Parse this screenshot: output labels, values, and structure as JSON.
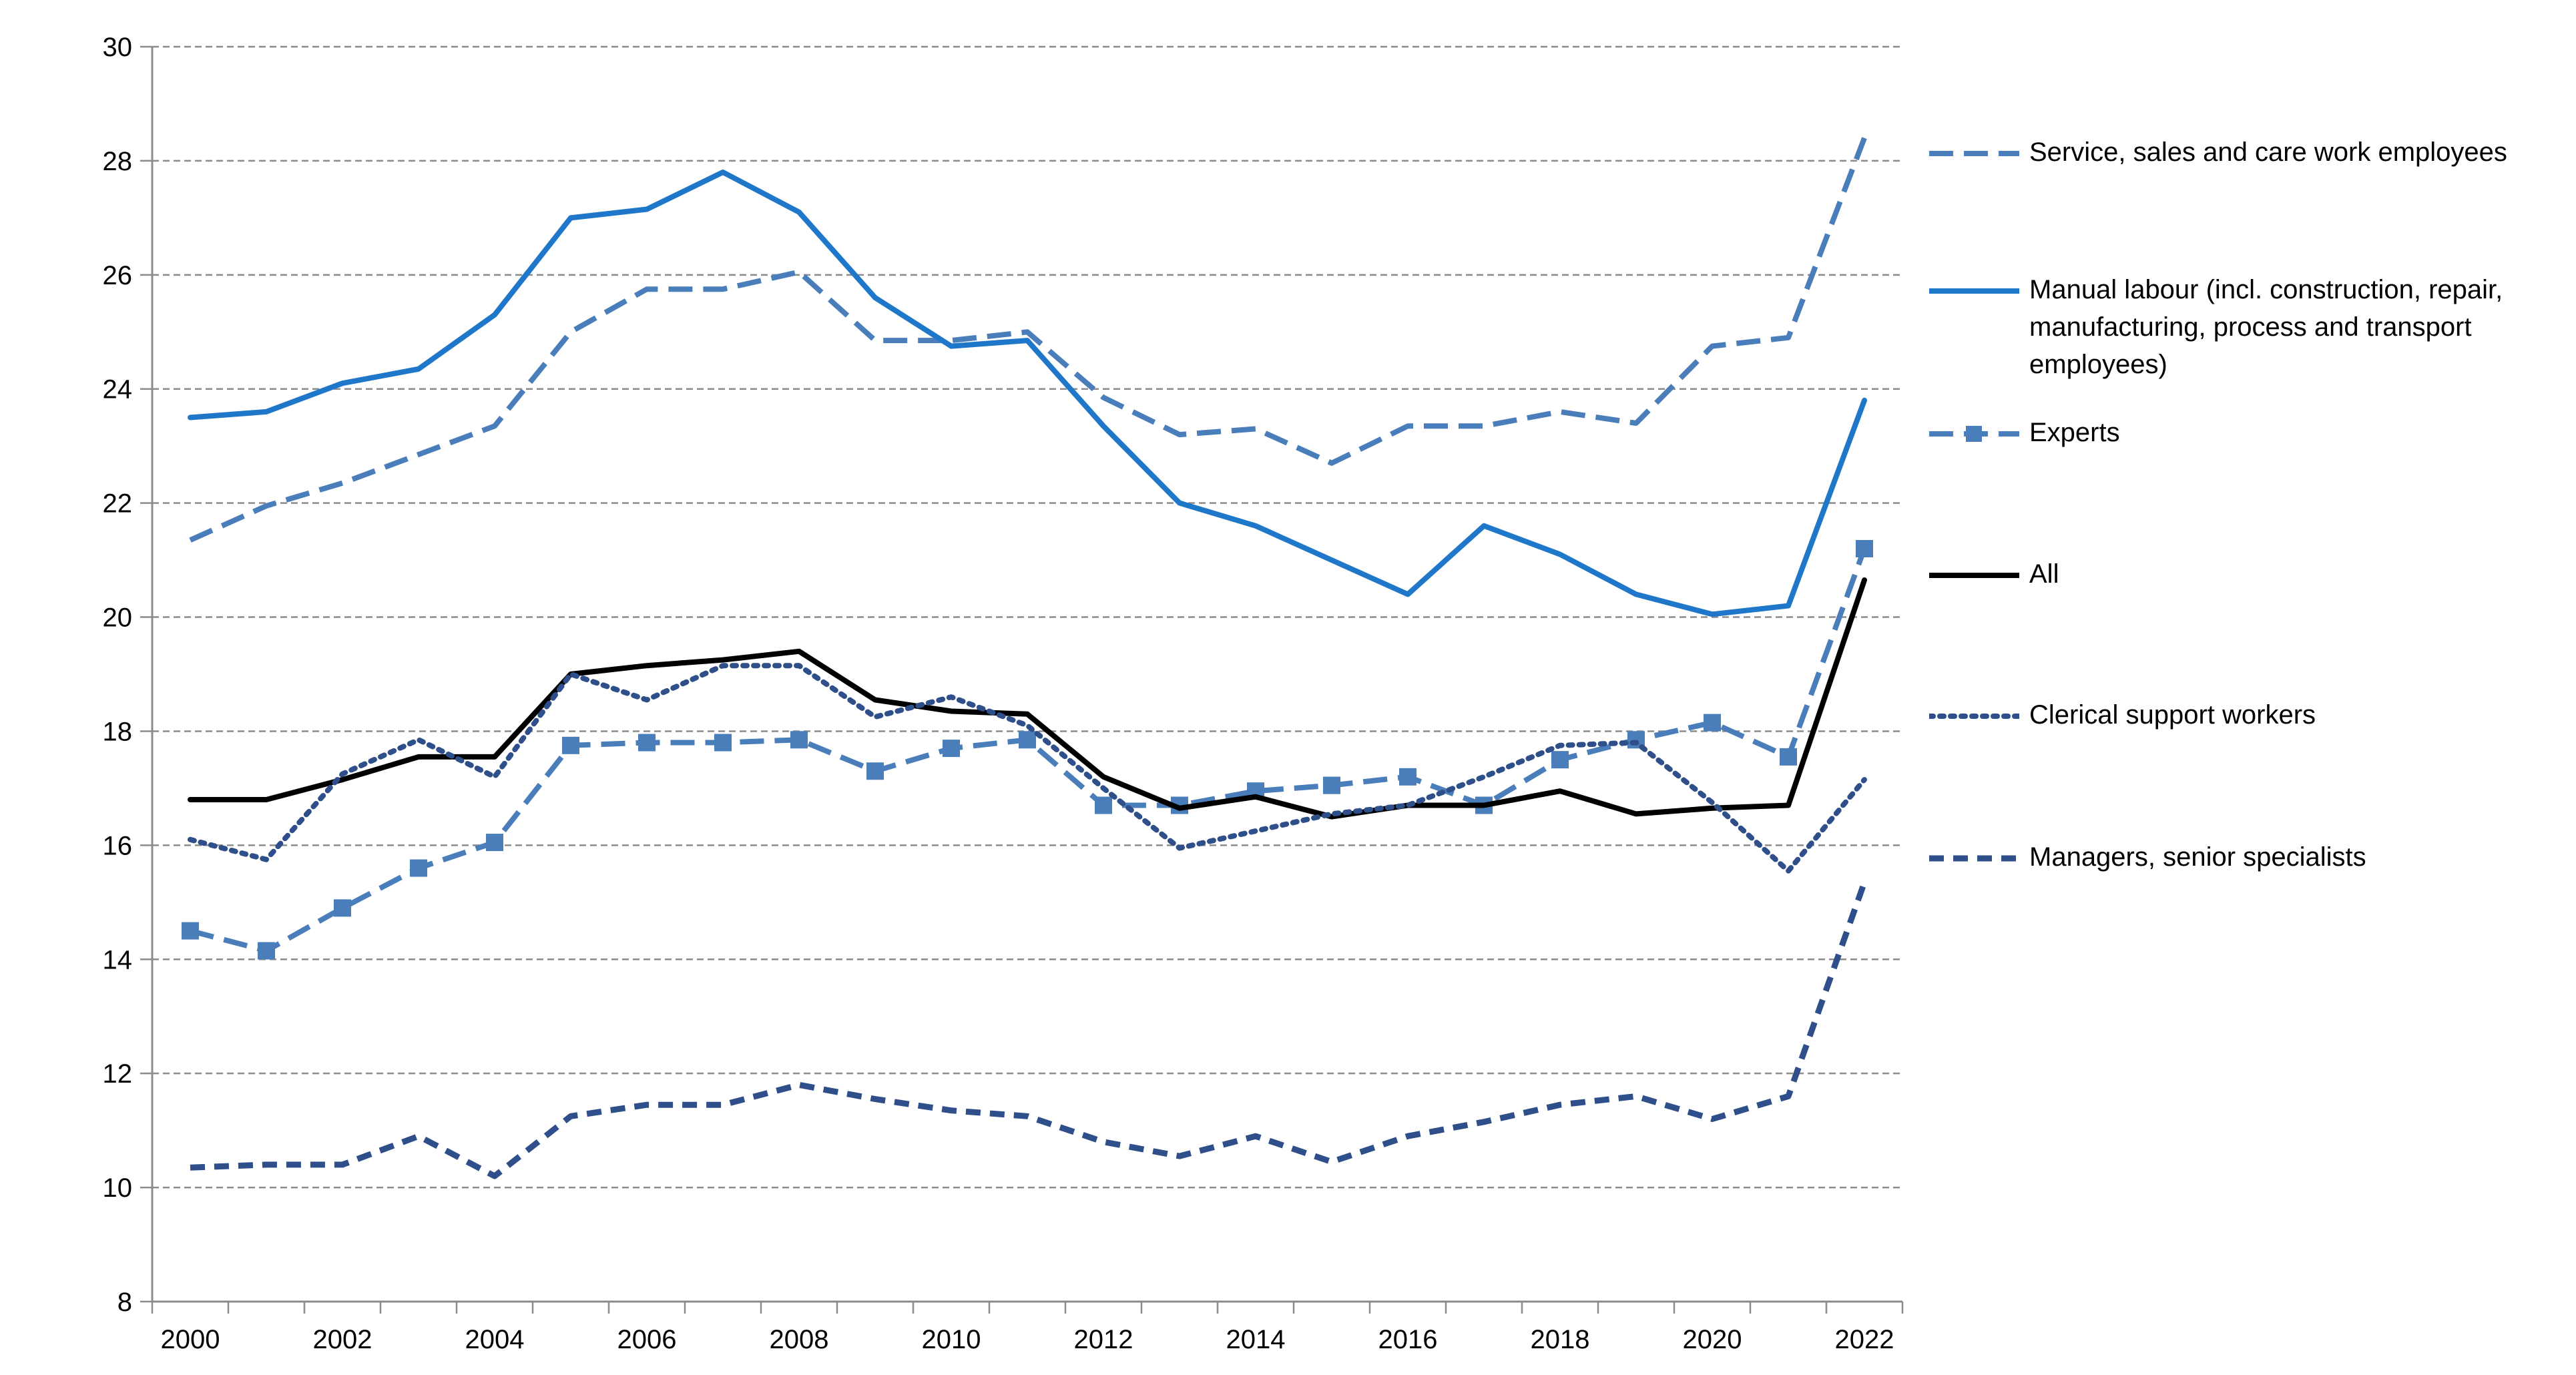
{
  "chart_data": {
    "type": "line",
    "title": "",
    "xlabel": "",
    "ylabel": "",
    "ylim": [
      8,
      30
    ],
    "y_ticks": [
      "8",
      "10",
      "12",
      "14",
      "16",
      "18",
      "20",
      "22",
      "24",
      "26",
      "28",
      "30"
    ],
    "x_tick_labels": [
      "2000",
      "2002",
      "2004",
      "2006",
      "2008",
      "2010",
      "2012",
      "2014",
      "2016",
      "2018",
      "2020",
      "2022"
    ],
    "x": [
      2000,
      2001,
      2002,
      2003,
      2004,
      2005,
      2006,
      2007,
      2008,
      2009,
      2010,
      2011,
      2012,
      2013,
      2014,
      2015,
      2016,
      2017,
      2018,
      2019,
      2020,
      2021,
      2022
    ],
    "grid": "horizontal dashed",
    "legend_placement": "right",
    "series": [
      {
        "name": "Service, sales and care work employees",
        "style": "dashed",
        "color": "#4a7ebb",
        "values": [
          21.35,
          21.95,
          22.35,
          22.85,
          23.35,
          25.0,
          25.75,
          25.75,
          26.05,
          24.85,
          24.85,
          25.0,
          23.85,
          23.2,
          23.3,
          22.7,
          23.35,
          23.35,
          23.6,
          23.4,
          24.75,
          24.9,
          28.4
        ]
      },
      {
        "name": "Manual labour (incl. construction, repair, manufacturing, process and transport employees)",
        "style": "solid",
        "color": "#1f77c9",
        "values": [
          23.5,
          23.6,
          24.1,
          24.35,
          25.3,
          27.0,
          27.15,
          27.8,
          27.1,
          25.6,
          24.75,
          24.85,
          23.35,
          22.0,
          21.6,
          21.0,
          20.4,
          21.6,
          21.1,
          20.4,
          20.05,
          20.2,
          23.8
        ]
      },
      {
        "name": "Experts",
        "style": "dashed-square",
        "color": "#4a7ebb",
        "values": [
          14.5,
          14.15,
          14.9,
          15.6,
          16.05,
          17.75,
          17.8,
          17.8,
          17.85,
          17.3,
          17.7,
          17.85,
          16.7,
          16.7,
          16.95,
          17.05,
          17.2,
          16.7,
          17.5,
          17.85,
          18.15,
          17.55,
          21.2
        ]
      },
      {
        "name": "All",
        "style": "solid",
        "color": "#000000",
        "values": [
          16.8,
          16.8,
          17.15,
          17.55,
          17.55,
          19.0,
          19.15,
          19.25,
          19.4,
          18.55,
          18.35,
          18.3,
          17.2,
          16.65,
          16.85,
          16.5,
          16.7,
          16.7,
          16.95,
          16.55,
          16.65,
          16.7,
          20.65
        ]
      },
      {
        "name": "Clerical support workers",
        "style": "dotted",
        "color": "#2e4f8a",
        "values": [
          16.1,
          15.75,
          17.25,
          17.85,
          17.2,
          19.0,
          18.55,
          19.15,
          19.15,
          18.25,
          18.6,
          18.1,
          17.0,
          15.95,
          16.25,
          16.55,
          16.7,
          17.2,
          17.75,
          17.8,
          16.75,
          15.55,
          17.15
        ]
      },
      {
        "name": "Managers, senior specialists",
        "style": "dashed-thick",
        "color": "#2e4f8a",
        "values": [
          10.35,
          10.4,
          10.4,
          10.9,
          10.2,
          11.25,
          11.45,
          11.45,
          11.8,
          11.55,
          11.35,
          11.25,
          10.8,
          10.55,
          10.9,
          10.45,
          10.9,
          11.15,
          11.45,
          11.6,
          11.2,
          11.6,
          15.35
        ]
      }
    ]
  }
}
